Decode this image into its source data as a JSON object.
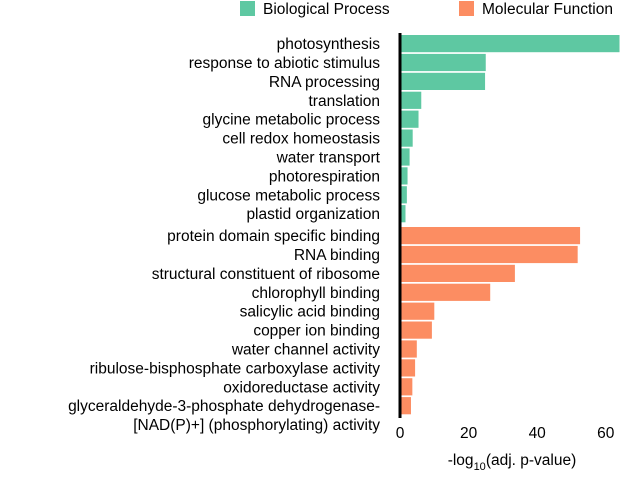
{
  "chart_data": {
    "type": "bar",
    "orientation": "horizontal",
    "xlabel": {
      "prefix": "-log",
      "subscript": "10",
      "suffix": "(adj. p-value)"
    },
    "xlim": [
      0,
      65
    ],
    "xticks": [
      0,
      20,
      40,
      60
    ],
    "grid": false,
    "legend_position": "top",
    "series": [
      {
        "name": "Biological Process",
        "color": "#5ec8a2"
      },
      {
        "name": "Molecular Function",
        "color": "#fc8d62"
      }
    ],
    "bars": [
      {
        "label": "photosynthesis",
        "value": 64,
        "series": 0
      },
      {
        "label": "response to abiotic stimulus",
        "value": 25,
        "series": 0
      },
      {
        "label": "RNA processing",
        "value": 24.8,
        "series": 0
      },
      {
        "label": "translation",
        "value": 6.2,
        "series": 0
      },
      {
        "label": "glycine metabolic process",
        "value": 5.4,
        "series": 0
      },
      {
        "label": "cell redox homeostasis",
        "value": 3.7,
        "series": 0
      },
      {
        "label": "water transport",
        "value": 2.8,
        "series": 0
      },
      {
        "label": "photorespiration",
        "value": 2.2,
        "series": 0
      },
      {
        "label": "glucose metabolic process",
        "value": 2.0,
        "series": 0
      },
      {
        "label": "plastid organization",
        "value": 1.6,
        "series": 0
      },
      {
        "label": "protein domain specific binding",
        "value": 52.5,
        "series": 1
      },
      {
        "label": "RNA binding",
        "value": 51.8,
        "series": 1
      },
      {
        "label": "structural constituent of ribosome",
        "value": 33.5,
        "series": 1
      },
      {
        "label": "chlorophyll binding",
        "value": 26.3,
        "series": 1
      },
      {
        "label": "salicylic acid binding",
        "value": 10,
        "series": 1
      },
      {
        "label": "copper ion binding",
        "value": 9.3,
        "series": 1
      },
      {
        "label": "water channel activity",
        "value": 4.9,
        "series": 1
      },
      {
        "label": "ribulose-bisphosphate carboxylase activity",
        "value": 4.4,
        "series": 1
      },
      {
        "label": "oxidoreductase activity",
        "value": 3.6,
        "series": 1
      },
      {
        "label": "glyceraldehyde-3-phosphate dehydrogenase-",
        "value": 3.2,
        "series": 1
      },
      {
        "label": "[NAD(P)+] (phosphorylating) activity",
        "value": null,
        "series": 1
      }
    ]
  }
}
